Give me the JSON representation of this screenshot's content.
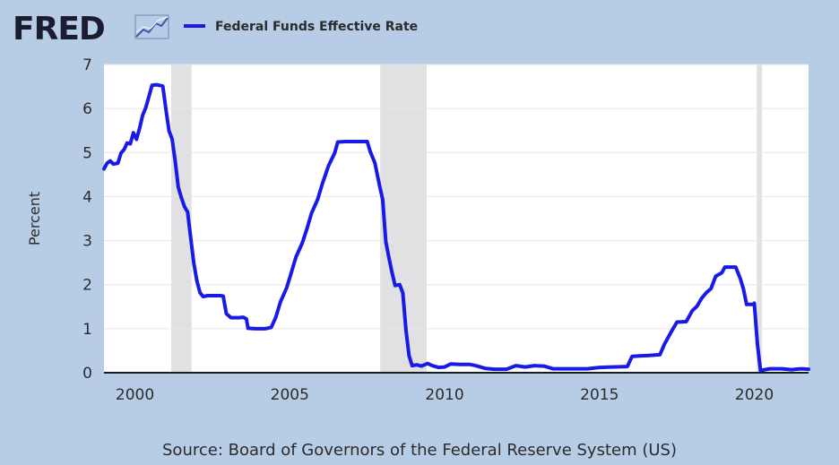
{
  "brand": {
    "logo_text": "FRED",
    "logo_icon": "trend-line-icon"
  },
  "colors": {
    "background": "#b7cde6",
    "plot_bg": "#ffffff",
    "series": "#1a1ae6",
    "recession": "#e1e1e4",
    "text": "#2b2b2b",
    "logo": "#1c1c30"
  },
  "chart_data": {
    "type": "line",
    "ylabel": "Percent",
    "xlabel": "",
    "xlim": [
      1999.0,
      2021.75
    ],
    "ylim": [
      0,
      7
    ],
    "x_ticks": [
      2000,
      2005,
      2010,
      2015,
      2020
    ],
    "y_ticks": [
      0,
      1,
      2,
      3,
      4,
      5,
      6,
      7
    ],
    "grid": "horizontal",
    "legend_position": "top-left",
    "source": "Source: Board of Governors of the Federal Reserve System (US)",
    "recessions": [
      [
        2001.17,
        2001.83
      ],
      [
        2007.92,
        2009.42
      ],
      [
        2020.08,
        2020.25
      ]
    ],
    "series": [
      {
        "name": "Federal Funds Effective Rate",
        "points": [
          [
            1999.0,
            4.63
          ],
          [
            1999.1,
            4.76
          ],
          [
            1999.2,
            4.81
          ],
          [
            1999.3,
            4.74
          ],
          [
            1999.45,
            4.76
          ],
          [
            1999.55,
            4.99
          ],
          [
            1999.65,
            5.07
          ],
          [
            1999.75,
            5.22
          ],
          [
            1999.85,
            5.2
          ],
          [
            1999.95,
            5.45
          ],
          [
            2000.05,
            5.3
          ],
          [
            2000.15,
            5.55
          ],
          [
            2000.25,
            5.85
          ],
          [
            2000.35,
            6.02
          ],
          [
            2000.45,
            6.27
          ],
          [
            2000.55,
            6.53
          ],
          [
            2000.7,
            6.54
          ],
          [
            2000.9,
            6.51
          ],
          [
            2001.0,
            5.98
          ],
          [
            2001.1,
            5.49
          ],
          [
            2001.2,
            5.31
          ],
          [
            2001.3,
            4.8
          ],
          [
            2001.4,
            4.21
          ],
          [
            2001.5,
            3.97
          ],
          [
            2001.6,
            3.77
          ],
          [
            2001.7,
            3.65
          ],
          [
            2001.8,
            3.07
          ],
          [
            2001.9,
            2.49
          ],
          [
            2002.0,
            2.09
          ],
          [
            2002.1,
            1.82
          ],
          [
            2002.2,
            1.73
          ],
          [
            2002.35,
            1.75
          ],
          [
            2002.6,
            1.75
          ],
          [
            2002.75,
            1.75
          ],
          [
            2002.85,
            1.74
          ],
          [
            2002.95,
            1.34
          ],
          [
            2003.1,
            1.25
          ],
          [
            2003.35,
            1.25
          ],
          [
            2003.5,
            1.26
          ],
          [
            2003.6,
            1.22
          ],
          [
            2003.65,
            1.01
          ],
          [
            2003.9,
            1.0
          ],
          [
            2004.2,
            1.0
          ],
          [
            2004.4,
            1.03
          ],
          [
            2004.55,
            1.26
          ],
          [
            2004.7,
            1.61
          ],
          [
            2004.9,
            1.93
          ],
          [
            2005.0,
            2.16
          ],
          [
            2005.2,
            2.63
          ],
          [
            2005.4,
            2.94
          ],
          [
            2005.55,
            3.26
          ],
          [
            2005.7,
            3.62
          ],
          [
            2005.9,
            3.94
          ],
          [
            2006.05,
            4.29
          ],
          [
            2006.25,
            4.7
          ],
          [
            2006.45,
            4.99
          ],
          [
            2006.55,
            5.24
          ],
          [
            2006.8,
            5.25
          ],
          [
            2007.2,
            5.25
          ],
          [
            2007.5,
            5.25
          ],
          [
            2007.6,
            5.02
          ],
          [
            2007.75,
            4.76
          ],
          [
            2007.9,
            4.24
          ],
          [
            2008.0,
            3.94
          ],
          [
            2008.1,
            2.98
          ],
          [
            2008.2,
            2.61
          ],
          [
            2008.3,
            2.28
          ],
          [
            2008.4,
            1.98
          ],
          [
            2008.55,
            2.0
          ],
          [
            2008.65,
            1.81
          ],
          [
            2008.75,
            0.97
          ],
          [
            2008.85,
            0.39
          ],
          [
            2008.95,
            0.16
          ],
          [
            2009.1,
            0.18
          ],
          [
            2009.25,
            0.15
          ],
          [
            2009.45,
            0.21
          ],
          [
            2009.6,
            0.16
          ],
          [
            2009.8,
            0.12
          ],
          [
            2010.0,
            0.13
          ],
          [
            2010.2,
            0.2
          ],
          [
            2010.5,
            0.19
          ],
          [
            2010.8,
            0.19
          ],
          [
            2011.0,
            0.16
          ],
          [
            2011.3,
            0.1
          ],
          [
            2011.6,
            0.08
          ],
          [
            2012.0,
            0.08
          ],
          [
            2012.3,
            0.16
          ],
          [
            2012.6,
            0.13
          ],
          [
            2012.9,
            0.16
          ],
          [
            2013.2,
            0.15
          ],
          [
            2013.5,
            0.09
          ],
          [
            2013.8,
            0.09
          ],
          [
            2014.2,
            0.09
          ],
          [
            2014.6,
            0.09
          ],
          [
            2015.0,
            0.12
          ],
          [
            2015.4,
            0.13
          ],
          [
            2015.9,
            0.14
          ],
          [
            2016.05,
            0.37
          ],
          [
            2016.3,
            0.38
          ],
          [
            2016.6,
            0.39
          ],
          [
            2016.95,
            0.41
          ],
          [
            2017.1,
            0.65
          ],
          [
            2017.3,
            0.91
          ],
          [
            2017.5,
            1.15
          ],
          [
            2017.8,
            1.16
          ],
          [
            2018.0,
            1.41
          ],
          [
            2018.15,
            1.51
          ],
          [
            2018.3,
            1.69
          ],
          [
            2018.45,
            1.82
          ],
          [
            2018.6,
            1.91
          ],
          [
            2018.75,
            2.19
          ],
          [
            2018.95,
            2.27
          ],
          [
            2019.05,
            2.4
          ],
          [
            2019.4,
            2.4
          ],
          [
            2019.55,
            2.13
          ],
          [
            2019.65,
            1.9
          ],
          [
            2019.75,
            1.55
          ],
          [
            2019.95,
            1.55
          ],
          [
            2020.0,
            1.58
          ],
          [
            2020.1,
            0.65
          ],
          [
            2020.2,
            0.05
          ],
          [
            2020.5,
            0.09
          ],
          [
            2020.9,
            0.09
          ],
          [
            2021.2,
            0.07
          ],
          [
            2021.5,
            0.09
          ],
          [
            2021.75,
            0.08
          ]
        ]
      }
    ]
  }
}
